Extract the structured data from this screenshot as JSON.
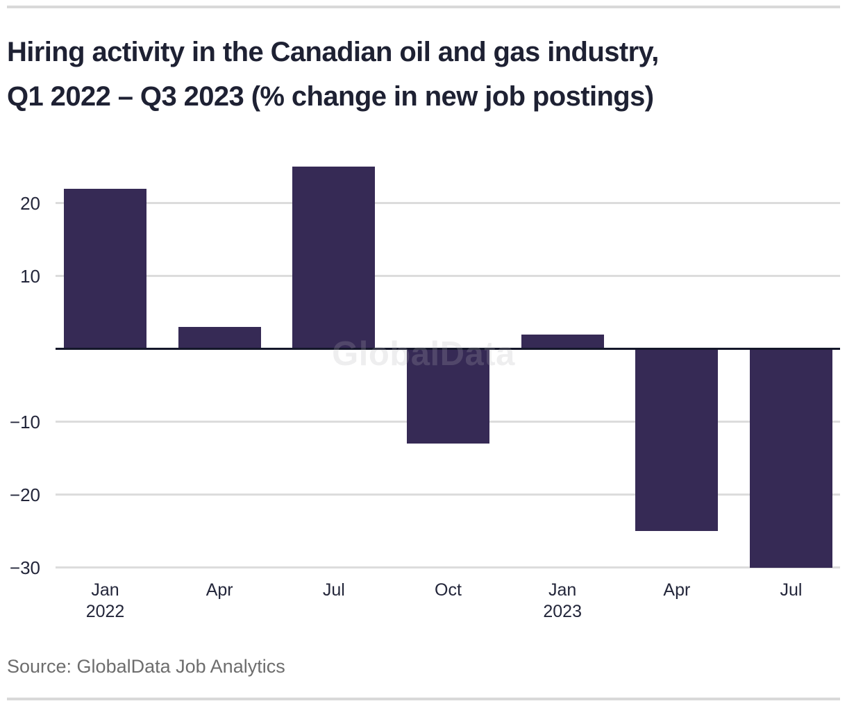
{
  "header": {
    "title_line1": "Hiring activity in the Canadian oil and gas industry,",
    "title_line2": "Q1 2022 – Q3 2023 (% change in new job postings)"
  },
  "chart_data": {
    "type": "bar",
    "title": "Hiring activity in the Canadian oil and gas industry, Q1 2022 – Q3 2023 (% change in new job postings)",
    "categories": [
      "Jan 2022",
      "Apr 2022",
      "Jul 2022",
      "Oct 2022",
      "Jan 2023",
      "Apr 2023",
      "Jul 2023"
    ],
    "x_tick_labels": [
      [
        "Jan",
        "2022"
      ],
      [
        "Apr"
      ],
      [
        "Jul"
      ],
      [
        "Oct"
      ],
      [
        "Jan",
        "2023"
      ],
      [
        "Apr"
      ],
      [
        "Jul"
      ]
    ],
    "values": [
      22,
      3,
      25,
      -13,
      2,
      -25,
      -30
    ],
    "ylabel": "% change in new job postings",
    "xlabel": "",
    "yticks": [
      20,
      10,
      -10,
      -20,
      -30
    ],
    "ytick_labels": [
      "20",
      "10",
      "−10",
      "−20",
      "−30"
    ],
    "ylim": [
      -32,
      27
    ],
    "grid": true,
    "legend": false,
    "bar_color": "#362a55",
    "watermark": "GlobalData"
  },
  "footer": {
    "source": "Source: GlobalData Job Analytics"
  },
  "colors": {
    "bar": "#362a55",
    "title_text": "#1e2133",
    "axis_text": "#23263a",
    "gridline": "#dcdcdc",
    "zero_line": "#14172a",
    "rule": "#d9d9d9",
    "source_text": "#6d6d6d",
    "background": "#ffffff"
  }
}
